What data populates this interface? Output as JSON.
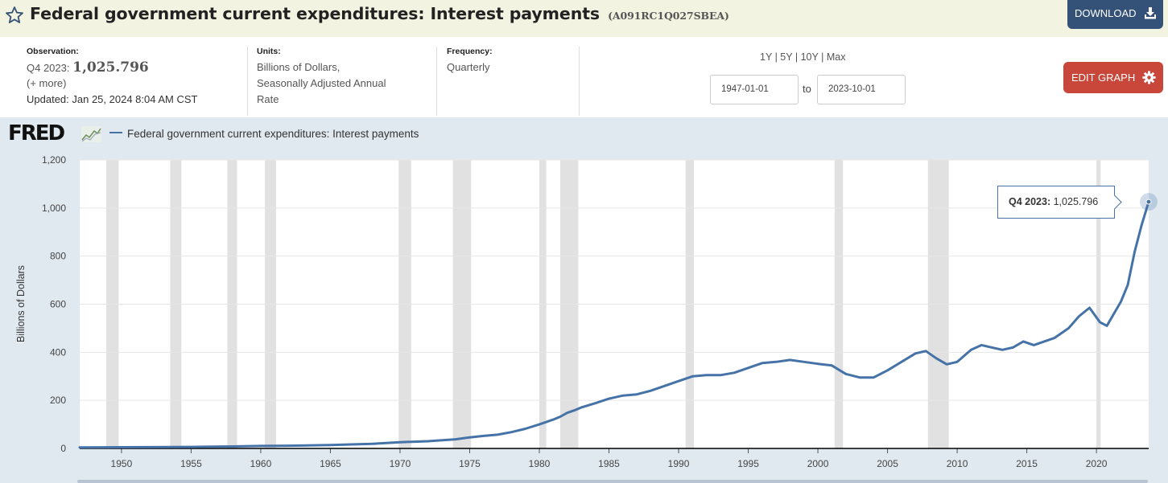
{
  "header": {
    "title": "Federal government current expenditures: Interest payments",
    "series_id": "(A091RC1Q027SBEA)",
    "download_label": "DOWNLOAD"
  },
  "meta": {
    "observation_label": "Observation:",
    "observation_period": "Q4 2023:",
    "observation_value": "1,025.796",
    "observation_more": "(+ more)",
    "updated": "Updated: Jan 25, 2024 8:04 AM CST",
    "units_label": "Units:",
    "units_line1": "Billions of Dollars,",
    "units_line2": "Seasonally Adjusted Annual",
    "units_line3": "Rate",
    "frequency_label": "Frequency:",
    "frequency_value": "Quarterly"
  },
  "controls": {
    "range_1y": "1Y",
    "range_5y": "5Y",
    "range_10y": "10Y",
    "range_max": "Max",
    "start_date": "1947-01-01",
    "to_label": "to",
    "end_date": "2023-10-01",
    "edit_graph_label": "EDIT GRAPH"
  },
  "graph": {
    "logo": "FRED",
    "legend_label": "Federal government current expenditures: Interest payments",
    "tooltip_period": "Q4 2023:",
    "tooltip_value": "1,025.796"
  },
  "colors": {
    "line": "#4572a7",
    "recession": "#e1e1e1",
    "download_button": "#345177",
    "edit_button": "#c9473a"
  },
  "chart_data": {
    "type": "line",
    "ylabel": "Billions of Dollars",
    "xlim": [
      1947.0,
      2023.75
    ],
    "ylim": [
      0,
      1200
    ],
    "yticks": [
      0,
      200,
      400,
      600,
      800,
      1000,
      1200
    ],
    "ytick_labels": [
      "0",
      "200",
      "400",
      "600",
      "800",
      "1,000",
      "1,200"
    ],
    "xticks": [
      1950,
      1955,
      1960,
      1965,
      1970,
      1975,
      1980,
      1985,
      1990,
      1995,
      2000,
      2005,
      2010,
      2015,
      2020
    ],
    "recessions": [
      [
        1948.9,
        1949.8
      ],
      [
        1953.5,
        1954.3
      ],
      [
        1957.6,
        1958.3
      ],
      [
        1960.3,
        1961.1
      ],
      [
        1969.9,
        1970.8
      ],
      [
        1973.8,
        1975.1
      ],
      [
        1980.0,
        1980.5
      ],
      [
        1981.5,
        1982.8
      ],
      [
        1990.5,
        1991.1
      ],
      [
        2001.2,
        2001.8
      ],
      [
        2007.9,
        2009.4
      ],
      [
        2020.0,
        2020.3
      ]
    ],
    "series": [
      {
        "name": "Federal government current expenditures: Interest payments",
        "x": [
          1947,
          1950,
          1955,
          1958,
          1960,
          1962,
          1965,
          1968,
          1970,
          1972,
          1974,
          1975,
          1976,
          1977,
          1978,
          1979,
          1980,
          1981,
          1981.5,
          1982,
          1982.5,
          1983,
          1984,
          1985,
          1986,
          1987,
          1988,
          1989,
          1990,
          1991,
          1992,
          1993,
          1994,
          1995,
          1996,
          1997,
          1998,
          1999,
          2000,
          2001,
          2002,
          2003,
          2004,
          2005,
          2006,
          2007,
          2007.75,
          2008.5,
          2009.25,
          2010,
          2011,
          2011.75,
          2012.5,
          2013.25,
          2014,
          2014.75,
          2015.5,
          2016.25,
          2017,
          2018,
          2018.75,
          2019.5,
          2020.25,
          2020.75,
          2021.25,
          2021.75,
          2022.25,
          2022.75,
          2023.25,
          2023.75
        ],
        "values": [
          4.5,
          5.0,
          6.5,
          8.5,
          10.5,
          11.5,
          14,
          19,
          26,
          30,
          38,
          46,
          52,
          57,
          68,
          82,
          100,
          120,
          132,
          148,
          158,
          170,
          188,
          207,
          220,
          225,
          240,
          260,
          280,
          300,
          305,
          305,
          315,
          335,
          355,
          360,
          368,
          360,
          352,
          345,
          310,
          295,
          295,
          325,
          360,
          395,
          405,
          375,
          350,
          360,
          410,
          430,
          420,
          410,
          420,
          445,
          430,
          445,
          460,
          500,
          550,
          585,
          525,
          510,
          560,
          610,
          680,
          820,
          930,
          1025.796
        ]
      }
    ]
  }
}
